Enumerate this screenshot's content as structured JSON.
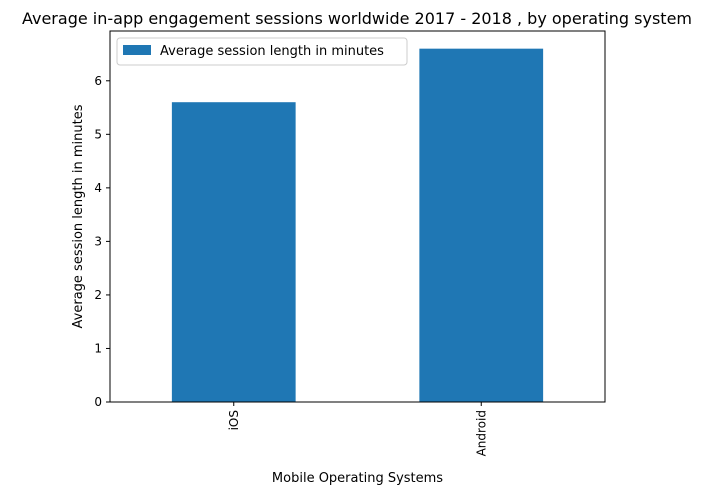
{
  "chart_data": {
    "type": "bar",
    "title": "Average in-app engagement sessions worldwide 2017 - 2018 , by operating system",
    "xlabel": "Mobile Operating Systems",
    "ylabel": "Average session length in minutes",
    "categories": [
      "iOS",
      "Android"
    ],
    "series": [
      {
        "name": "Average session length in minutes",
        "values": [
          5.6,
          6.6
        ],
        "color": "#1f77b4"
      }
    ],
    "ylim": [
      0,
      6.93
    ],
    "yticks": [
      0,
      1,
      2,
      3,
      4,
      5,
      6
    ],
    "grid": false,
    "legend_position": "top-left"
  }
}
